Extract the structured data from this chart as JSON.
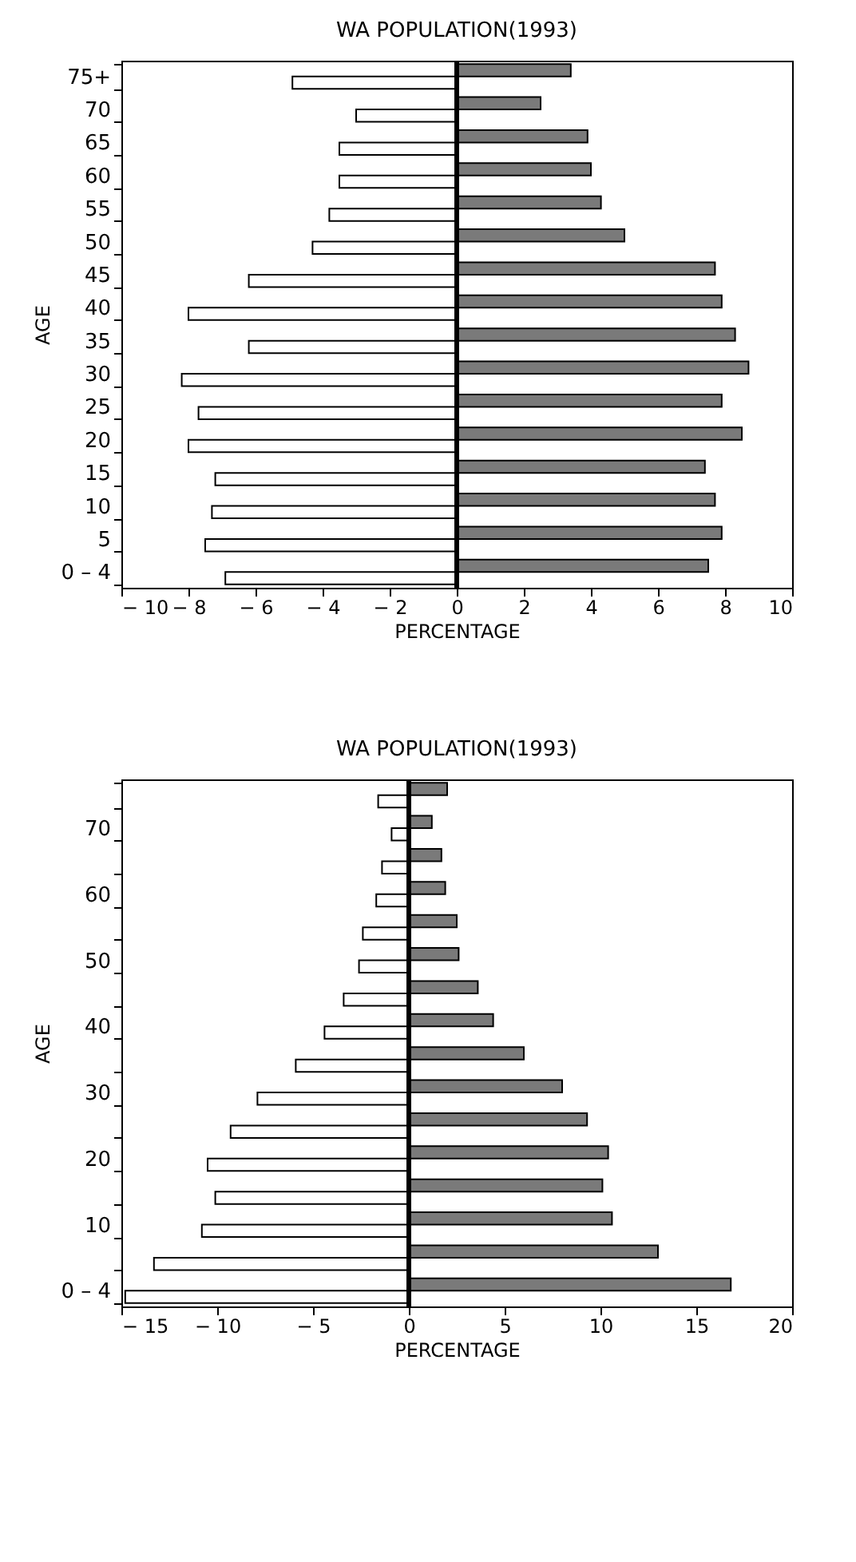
{
  "chart_data": [
    {
      "type": "bar",
      "orientation": "horizontal",
      "title": "WA POPULATION(1993)",
      "xlabel": "PERCENTAGE",
      "ylabel": "AGE",
      "categories": [
        "75+",
        "70",
        "65",
        "60",
        "55",
        "50",
        "45",
        "40",
        "35",
        "30",
        "25",
        "20",
        "15",
        "10",
        "5",
        "0 – 4"
      ],
      "series": [
        {
          "color": "#7a7a7a",
          "values": [
            3.4,
            2.5,
            3.9,
            4.0,
            4.3,
            5.0,
            7.7,
            7.9,
            8.3,
            8.7,
            7.9,
            8.5,
            7.4,
            7.7,
            7.9,
            7.5
          ]
        },
        {
          "color": "#ffffff",
          "values": [
            -4.9,
            -3.0,
            -3.5,
            -3.5,
            -3.8,
            -4.3,
            -6.2,
            -8.0,
            -6.2,
            -8.2,
            -7.7,
            -8.0,
            -7.2,
            -7.3,
            -7.5,
            -6.9
          ]
        }
      ],
      "xlim": [
        -10,
        10
      ],
      "xticks": [
        {
          "value": -10,
          "label": "− 10"
        },
        {
          "value": -8,
          "label": "− 8"
        },
        {
          "value": -6,
          "label": "− 6"
        },
        {
          "value": -4,
          "label": "− 4"
        },
        {
          "value": -2,
          "label": "− 2"
        },
        0,
        2,
        4,
        6,
        8,
        10
      ],
      "ref_lines": [
        {
          "axis": "x",
          "value": 0
        }
      ],
      "grid": false,
      "legend": false
    },
    {
      "type": "bar",
      "orientation": "horizontal",
      "title": "WA POPULATION(1993)",
      "xlabel": "PERCENTAGE",
      "ylabel": "AGE",
      "categories": [
        null,
        "70",
        null,
        "60",
        null,
        "50",
        null,
        "40",
        null,
        "30",
        null,
        "20",
        null,
        "10",
        null,
        "0 – 4"
      ],
      "series": [
        {
          "color": "#7a7a7a",
          "values": [
            2.0,
            1.2,
            1.7,
            1.9,
            2.5,
            2.6,
            3.6,
            4.4,
            6.0,
            8.0,
            9.3,
            10.4,
            10.1,
            10.6,
            13.0,
            16.8
          ]
        },
        {
          "color": "#ffffff",
          "values": [
            -1.6,
            -0.9,
            -1.4,
            -1.7,
            -2.4,
            -2.6,
            -3.4,
            -4.4,
            -5.9,
            -7.9,
            -9.3,
            -10.5,
            -10.1,
            -10.8,
            -13.3,
            -14.8
          ]
        }
      ],
      "xlim": [
        -15,
        20
      ],
      "xticks": [
        {
          "value": -15,
          "label": "− 15"
        },
        {
          "value": -10,
          "label": "− 10"
        },
        {
          "value": -5,
          "label": "− 5"
        },
        0,
        5,
        10,
        15,
        20
      ],
      "ref_lines": [
        {
          "axis": "x",
          "value": 0
        }
      ],
      "grid": false,
      "legend": false
    }
  ]
}
